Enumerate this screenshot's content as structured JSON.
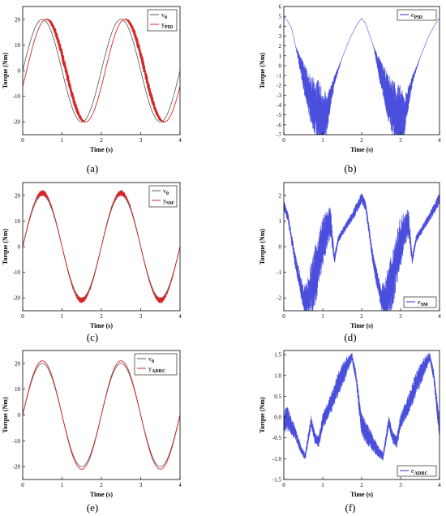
{
  "chart_data": [
    {
      "type": "line",
      "caption": "(a)",
      "xlabel": "Time (s)",
      "ylabel": "Torque (Nm)",
      "xlim": [
        0,
        4
      ],
      "ylim": [
        -25,
        25
      ],
      "xticks": [
        0,
        1,
        2,
        3,
        4
      ],
      "yticks": [
        -20,
        -10,
        0,
        10,
        20
      ],
      "legend_position": "top-right",
      "series": [
        {
          "name": "v",
          "name_sub": "0",
          "color": "#555555",
          "description": "sine, amplitude 20, period 2 s",
          "amplitude": 20,
          "period": 2,
          "phase": 0
        },
        {
          "name": "y",
          "name_sub": "PID",
          "color": "#d62728",
          "description": "lagged sine, amplitude 20, with chattering on falling slopes",
          "amplitude": 20,
          "period": 2,
          "phase": -0.1,
          "chatter": 2.5
        }
      ]
    },
    {
      "type": "line",
      "caption": "(b)",
      "xlabel": "Time (s)",
      "ylabel": "Torque (Nm)",
      "xlim": [
        0,
        4
      ],
      "ylim": [
        -7,
        6
      ],
      "xticks": [
        0,
        1,
        2,
        3,
        4
      ],
      "yticks": [
        -7,
        -6,
        -5,
        -4,
        -3,
        -2,
        -1,
        0,
        1,
        2,
        3,
        4,
        5,
        6
      ],
      "legend_position": "top-right",
      "series": [
        {
          "name": "e",
          "name_sub": "PID",
          "color": "#2a2fd6",
          "x": [
            0,
            0.1,
            0.2,
            0.3,
            0.5,
            0.7,
            0.9,
            1.0,
            1.1,
            1.3,
            1.5,
            1.7,
            1.9,
            2.0,
            2.1,
            2.3,
            2.5,
            2.7,
            2.9,
            3.0,
            3.1,
            3.3,
            3.5,
            3.7,
            3.9,
            4.0
          ],
          "y": [
            5.0,
            4.5,
            3.8,
            2.0,
            -1.0,
            -3.5,
            -5.0,
            -5.5,
            -5.0,
            -1.5,
            0.8,
            2.8,
            4.3,
            4.8,
            4.3,
            2.0,
            -1.0,
            -3.5,
            -5.0,
            -5.5,
            -5.0,
            -1.5,
            0.8,
            2.8,
            4.3,
            4.8
          ],
          "chatter": [
            0,
            0,
            0,
            0,
            1.5,
            2.5,
            3.5,
            3.5,
            2.0,
            0.5,
            0,
            0,
            0,
            0,
            0,
            0,
            1.5,
            2.5,
            3.5,
            3.5,
            2.0,
            0.5,
            0,
            0,
            0,
            0
          ]
        }
      ]
    },
    {
      "type": "line",
      "caption": "(c)",
      "xlabel": "Time (s)",
      "ylabel": "Torque (Nm)",
      "xlim": [
        0,
        4
      ],
      "ylim": [
        -25,
        25
      ],
      "xticks": [
        0,
        1,
        2,
        3,
        4
      ],
      "yticks": [
        -20,
        -10,
        0,
        10,
        20
      ],
      "legend_position": "top-right",
      "series": [
        {
          "name": "v",
          "name_sub": "0",
          "color": "#555555",
          "description": "sine, amplitude 20, period 2 s",
          "amplitude": 20,
          "period": 2,
          "phase": 0
        },
        {
          "name": "y",
          "name_sub": "SM",
          "color": "#d62728",
          "description": "sine, amplitude 21, small chattering near peaks",
          "amplitude": 21,
          "period": 2,
          "phase": 0,
          "chatter": 1.2
        }
      ]
    },
    {
      "type": "line",
      "caption": "(d)",
      "xlabel": "Time (s)",
      "ylabel": "Torque (Nm)",
      "xlim": [
        0,
        4
      ],
      "ylim": [
        -2.5,
        2.5
      ],
      "xticks": [
        0,
        1,
        2,
        3,
        4
      ],
      "yticks": [
        -2,
        -1,
        0,
        1,
        2
      ],
      "legend_position": "bottom-right",
      "series": [
        {
          "name": "e",
          "name_sub": "SM",
          "color": "#2a2fd6",
          "x": [
            0,
            0.1,
            0.3,
            0.5,
            0.6,
            0.8,
            1.0,
            1.2,
            1.3,
            1.4,
            1.6,
            1.8,
            2.0,
            2.1,
            2.3,
            2.5,
            2.6,
            2.8,
            3.0,
            3.2,
            3.3,
            3.4,
            3.6,
            3.8,
            4.0
          ],
          "y": [
            1.6,
            1.2,
            -0.6,
            -2.0,
            -2.1,
            -1.2,
            0.2,
            1.0,
            -0.5,
            0.3,
            0.8,
            1.3,
            1.9,
            1.6,
            -0.6,
            -2.0,
            -2.1,
            -1.2,
            0.2,
            1.0,
            -0.5,
            0.3,
            0.8,
            1.3,
            1.9
          ],
          "chatter": [
            0.2,
            0.2,
            0.3,
            0.5,
            0.8,
            1.2,
            1.0,
            0.6,
            0.2,
            0.15,
            0.15,
            0.2,
            0.25,
            0.2,
            0.3,
            0.5,
            0.8,
            1.2,
            1.0,
            0.6,
            0.2,
            0.15,
            0.15,
            0.2,
            0.25
          ]
        }
      ]
    },
    {
      "type": "line",
      "caption": "(e)",
      "xlabel": "Time (s)",
      "ylabel": "Torque (Nm)",
      "xlim": [
        0,
        4
      ],
      "ylim": [
        -25,
        25
      ],
      "xticks": [
        0,
        1,
        2,
        3,
        4
      ],
      "yticks": [
        -20,
        -10,
        0,
        10,
        20
      ],
      "legend_position": "top-right",
      "series": [
        {
          "name": "v",
          "name_sub": "0",
          "color": "#555555",
          "description": "sine, amplitude 20, period 2 s",
          "amplitude": 20,
          "period": 2,
          "phase": 0
        },
        {
          "name": "y",
          "name_sub": "ADRC",
          "color": "#d62728",
          "description": "sine, amplitude 21, smooth",
          "amplitude": 21,
          "period": 2,
          "phase": 0
        }
      ]
    },
    {
      "type": "line",
      "caption": "(f)",
      "xlabel": "Time (s)",
      "ylabel": "Torque (Nm)",
      "xlim": [
        0,
        4
      ],
      "ylim": [
        -1.5,
        1.6
      ],
      "xticks": [
        0,
        1,
        2,
        3,
        4
      ],
      "yticks": [
        -1.5,
        -1.0,
        -0.5,
        0.0,
        0.5,
        1.0,
        1.5
      ],
      "legend_position": "bottom-right",
      "series": [
        {
          "name": "e",
          "name_sub": "ADRC",
          "color": "#2a2fd6",
          "x": [
            0,
            0.1,
            0.3,
            0.45,
            0.55,
            0.7,
            0.8,
            0.9,
            1.0,
            1.2,
            1.4,
            1.6,
            1.75,
            1.85,
            2.0,
            2.2,
            2.4,
            2.55,
            2.7,
            2.8,
            2.9,
            3.0,
            3.2,
            3.4,
            3.6,
            3.75,
            3.85,
            4.0
          ],
          "y": [
            -0.1,
            -0.05,
            -0.4,
            -0.8,
            -0.95,
            -0.1,
            -0.5,
            -0.6,
            -0.1,
            0.3,
            0.8,
            1.2,
            1.45,
            1.0,
            -0.2,
            -0.5,
            -0.8,
            -0.95,
            -0.1,
            -0.5,
            -0.6,
            -0.1,
            0.3,
            0.8,
            1.2,
            1.45,
            1.0,
            -0.3
          ],
          "chatter": [
            0.3,
            0.3,
            0.15,
            0.1,
            0.1,
            0.15,
            0.15,
            0.15,
            0.2,
            0.25,
            0.3,
            0.25,
            0.1,
            0.15,
            0.3,
            0.25,
            0.15,
            0.1,
            0.15,
            0.15,
            0.15,
            0.2,
            0.25,
            0.3,
            0.25,
            0.1,
            0.15,
            0.3
          ]
        }
      ]
    }
  ]
}
